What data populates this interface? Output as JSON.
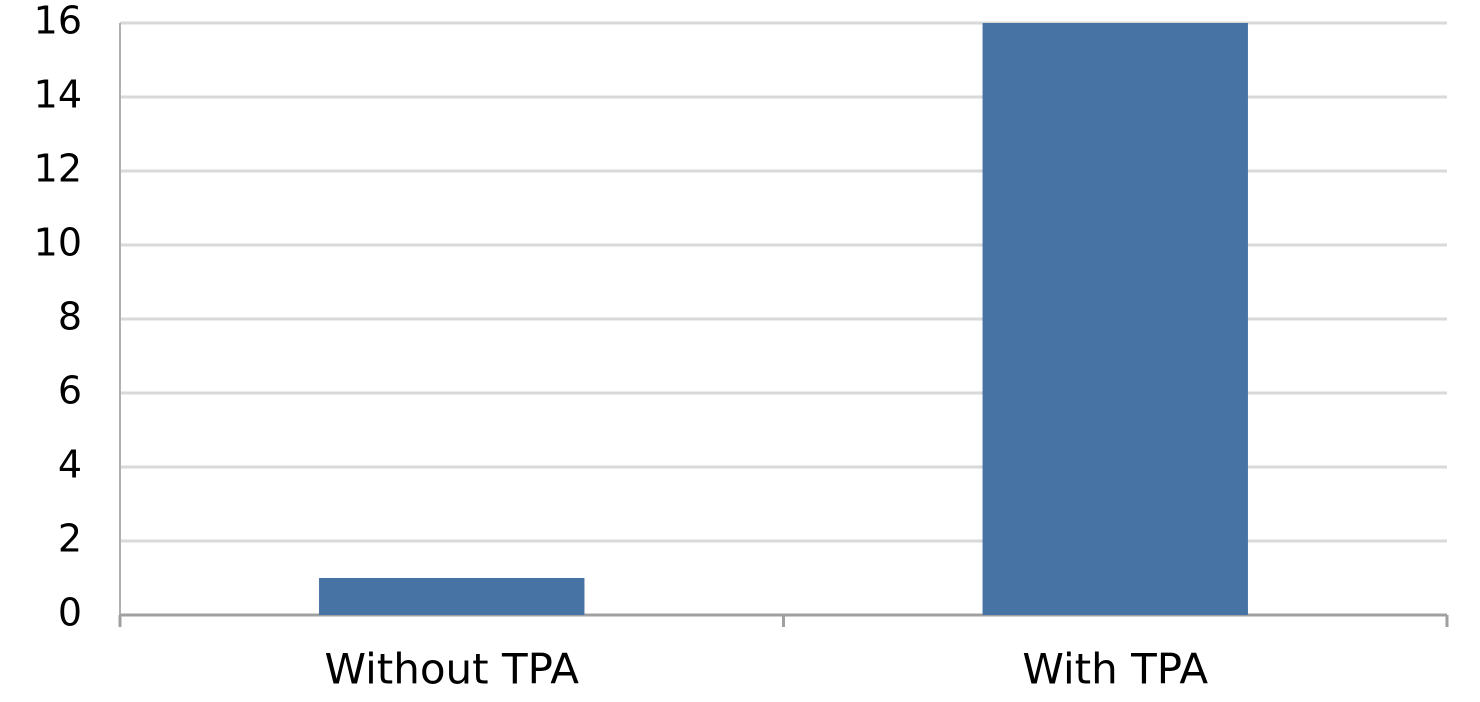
{
  "chart_data": {
    "type": "bar",
    "categories": [
      "Without TPA",
      "With TPA"
    ],
    "values": [
      1,
      16
    ],
    "color": "#4672a4",
    "ylim": [
      0,
      16
    ],
    "yticks": [
      0,
      2,
      4,
      6,
      8,
      10,
      12,
      14,
      16
    ],
    "grid": true
  }
}
